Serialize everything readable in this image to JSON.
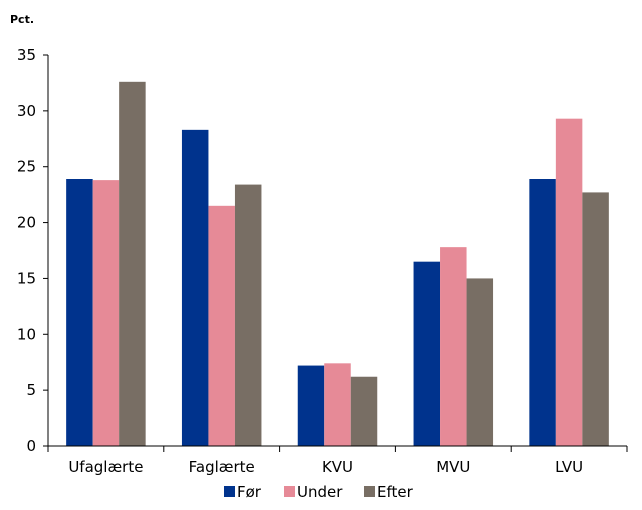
{
  "chart_data": {
    "type": "bar",
    "ylabel": "Pct.",
    "categories": [
      "Ufaglærte",
      "Faglærte",
      "KVU",
      "MVU",
      "LVU"
    ],
    "ylim": [
      0,
      35
    ],
    "yticks": [
      0,
      5,
      10,
      15,
      20,
      25,
      30,
      35
    ],
    "grid": false,
    "legend_position": "bottom",
    "series": [
      {
        "name": "Før",
        "color": "#00338D",
        "values": [
          23.9,
          28.3,
          7.2,
          16.5,
          23.9
        ]
      },
      {
        "name": "Under",
        "color": "#E68A97",
        "values": [
          23.8,
          21.5,
          7.4,
          17.8,
          29.3
        ]
      },
      {
        "name": "Efter",
        "color": "#786E64",
        "values": [
          32.6,
          23.4,
          6.2,
          15.0,
          22.7
        ]
      }
    ]
  }
}
